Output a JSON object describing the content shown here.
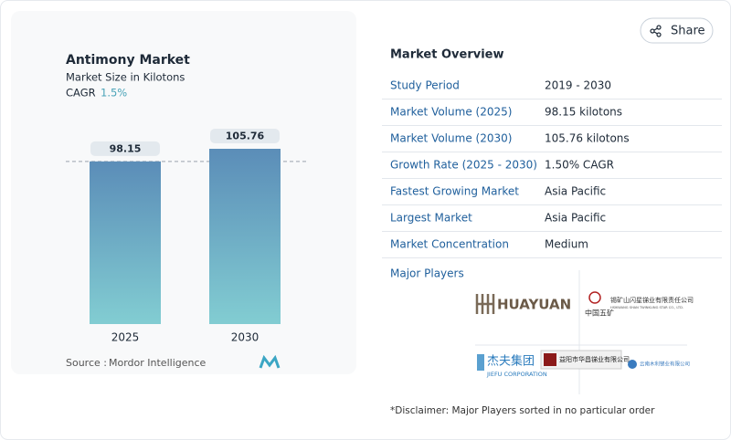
{
  "chart_data": {
    "type": "bar",
    "title": "Antimony Market",
    "subtitle": "Market Size in Kilotons",
    "cagr_label": "CAGR",
    "cagr_value": "1.5%",
    "categories": [
      "2025",
      "2030"
    ],
    "values": [
      98.15,
      105.76
    ],
    "colors": [
      "#5b8db8",
      "#82cdd2"
    ],
    "source_label": "Source :",
    "source": "Mordor Intelligence"
  },
  "share": "Share",
  "overview": {
    "title": "Market Overview",
    "rows": [
      [
        "Study Period",
        "2019 - 2030"
      ],
      [
        "Market Volume (2025)",
        "98.15 kilotons"
      ],
      [
        "Market Volume (2030)",
        "105.76 kilotons"
      ],
      [
        "Growth Rate (2025 - 2030)",
        "1.50% CAGR"
      ],
      [
        "Fastest Growing Market",
        "Asia Pacific"
      ],
      [
        "Largest Market",
        "Asia Pacific"
      ],
      [
        "Market Concentration",
        "Medium"
      ]
    ],
    "players_title": "Major Players",
    "players": [
      "HUAYUAN",
      "中国五矿",
      "锡矿山闪星锑业有限责任公司",
      "HSIKWANG SHAN TWINKLING STAR CO., LTD.",
      "杰夫集团",
      "JIEFU CORPORATION",
      "益阳市华昌锑业有限公司",
      "云南木利锑业有限公司"
    ],
    "disclaimer": "*Disclaimer: Major Players sorted in no particular order"
  }
}
